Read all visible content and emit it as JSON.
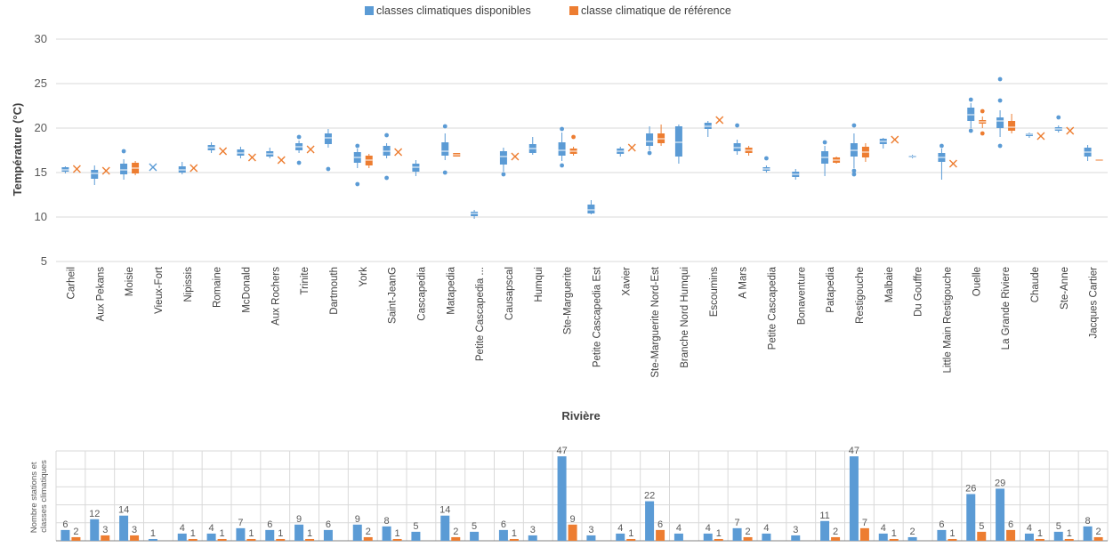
{
  "chart_data": [
    {
      "type": "boxplot",
      "legend": {
        "position": "top",
        "entries": [
          {
            "name": "classes climatiques disponibles",
            "color": "#5B9BD5"
          },
          {
            "name": "classe climatique de référence",
            "color": "#ED7D31"
          }
        ]
      },
      "xlabel": "Rivière",
      "ylabel": "Température (°C)",
      "ylim": [
        5,
        30
      ],
      "yticks": [
        5,
        10,
        15,
        20,
        25,
        30
      ],
      "grid": true,
      "categories": [
        "Carheil",
        "Aux Pekans",
        "Moisie",
        "Vieux-Fort",
        "Nipissis",
        "Romaine",
        "McDonald",
        "Aux Rochers",
        "Trinite",
        "Dartmouth",
        "York",
        "Saint-JeanG",
        "Cascapedia",
        "Matapedia",
        "Petite Cascapedia ...",
        "Causapscal",
        "Humqui",
        "Ste-Marguerite",
        "Petite Cascapedia Est",
        "Xavier",
        "Ste-Marguerite Nord-Est",
        "Branche Nord Humqui",
        "Escoumins",
        "A Mars",
        "Petite Cascapedia",
        "Bonaventure",
        "Patapedia",
        "Restigouche",
        "Malbaie",
        "Du Gouffre",
        "Little Main Restigouche",
        "Ouelle",
        "La Grande Riviere",
        "Chaude",
        "Ste-Anne",
        "Jacques Cartier"
      ],
      "series": [
        {
          "name": "classes climatiques disponibles",
          "boxes": [
            {
              "min": 14.9,
              "q1": 15.1,
              "median": 15.3,
              "q3": 15.6,
              "max": 15.7,
              "outliers": []
            },
            {
              "min": 13.6,
              "q1": 14.3,
              "median": 14.9,
              "q3": 15.3,
              "max": 15.8,
              "outliers": []
            },
            {
              "min": 14.2,
              "q1": 14.8,
              "median": 15.3,
              "q3": 16.0,
              "max": 16.5,
              "outliers": [
                17.4
              ]
            },
            {
              "min": 15.6,
              "q1": 15.6,
              "median": 15.6,
              "q3": 15.6,
              "max": 15.6,
              "outliers": []
            },
            {
              "min": 14.8,
              "q1": 15.0,
              "median": 15.3,
              "q3": 15.7,
              "max": 16.2,
              "outliers": []
            },
            {
              "min": 17.2,
              "q1": 17.5,
              "median": 17.8,
              "q3": 18.1,
              "max": 18.4,
              "outliers": []
            },
            {
              "min": 16.6,
              "q1": 16.9,
              "median": 17.2,
              "q3": 17.6,
              "max": 17.9,
              "outliers": []
            },
            {
              "min": 16.6,
              "q1": 16.8,
              "median": 17.1,
              "q3": 17.4,
              "max": 17.8,
              "outliers": []
            },
            {
              "min": 17.2,
              "q1": 17.5,
              "median": 17.9,
              "q3": 18.3,
              "max": 18.6,
              "outliers": [
                16.1,
                19.0
              ]
            },
            {
              "min": 17.8,
              "q1": 18.2,
              "median": 18.9,
              "q3": 19.4,
              "max": 19.9,
              "outliers": [
                15.4
              ]
            },
            {
              "min": 15.5,
              "q1": 16.1,
              "median": 16.7,
              "q3": 17.3,
              "max": 17.7,
              "outliers": [
                13.7,
                18.0
              ]
            },
            {
              "min": 16.6,
              "q1": 16.9,
              "median": 17.4,
              "q3": 18.0,
              "max": 18.3,
              "outliers": [
                14.4,
                19.2
              ]
            },
            {
              "min": 14.6,
              "q1": 15.1,
              "median": 15.6,
              "q3": 16.0,
              "max": 16.4,
              "outliers": []
            },
            {
              "min": 16.4,
              "q1": 16.9,
              "median": 17.4,
              "q3": 18.4,
              "max": 19.4,
              "outliers": [
                15.0,
                20.2
              ]
            },
            {
              "min": 9.8,
              "q1": 10.1,
              "median": 10.4,
              "q3": 10.6,
              "max": 10.8,
              "outliers": []
            },
            {
              "min": 15.1,
              "q1": 15.9,
              "median": 16.8,
              "q3": 17.4,
              "max": 17.8,
              "outliers": [
                14.8
              ]
            },
            {
              "min": 17.0,
              "q1": 17.2,
              "median": 17.7,
              "q3": 18.2,
              "max": 19.0,
              "outliers": []
            },
            {
              "min": 16.3,
              "q1": 16.9,
              "median": 17.5,
              "q3": 18.4,
              "max": 19.5,
              "outliers": [
                15.8,
                19.9
              ]
            },
            {
              "min": 10.3,
              "q1": 10.4,
              "median": 10.8,
              "q3": 11.4,
              "max": 11.9,
              "outliers": []
            },
            {
              "min": 16.8,
              "q1": 17.1,
              "median": 17.4,
              "q3": 17.7,
              "max": 17.9,
              "outliers": []
            },
            {
              "min": 17.5,
              "q1": 18.0,
              "median": 18.5,
              "q3": 19.4,
              "max": 20.2,
              "outliers": [
                17.2
              ]
            },
            {
              "min": 16.0,
              "q1": 16.8,
              "median": 18.4,
              "q3": 20.2,
              "max": 20.4,
              "outliers": []
            },
            {
              "min": 19.0,
              "q1": 19.9,
              "median": 20.2,
              "q3": 20.6,
              "max": 20.8,
              "outliers": []
            },
            {
              "min": 17.0,
              "q1": 17.4,
              "median": 17.8,
              "q3": 18.3,
              "max": 18.7,
              "outliers": [
                20.3
              ]
            },
            {
              "min": 15.0,
              "q1": 15.2,
              "median": 15.4,
              "q3": 15.6,
              "max": 15.8,
              "outliers": [
                16.6
              ]
            },
            {
              "min": 14.2,
              "q1": 14.5,
              "median": 14.8,
              "q3": 15.1,
              "max": 15.4,
              "outliers": []
            },
            {
              "min": 14.6,
              "q1": 16.0,
              "median": 16.7,
              "q3": 17.4,
              "max": 18.0,
              "outliers": [
                18.4
              ]
            },
            {
              "min": 15.5,
              "q1": 16.8,
              "median": 17.5,
              "q3": 18.3,
              "max": 19.4,
              "outliers": [
                14.8,
                15.2,
                20.3
              ]
            },
            {
              "min": 17.7,
              "q1": 18.2,
              "median": 18.5,
              "q3": 18.8,
              "max": 18.9,
              "outliers": []
            },
            {
              "min": 16.6,
              "q1": 16.7,
              "median": 16.8,
              "q3": 16.9,
              "max": 17.0,
              "outliers": []
            },
            {
              "min": 14.2,
              "q1": 16.2,
              "median": 16.7,
              "q3": 17.2,
              "max": 17.7,
              "outliers": [
                18.0
              ]
            },
            {
              "min": 20.0,
              "q1": 20.8,
              "median": 21.5,
              "q3": 22.3,
              "max": 22.8,
              "outliers": [
                19.7,
                23.2
              ]
            },
            {
              "min": 19.0,
              "q1": 20.0,
              "median": 20.8,
              "q3": 21.2,
              "max": 22.0,
              "outliers": [
                18.0,
                23.1,
                25.5
              ]
            },
            {
              "min": 18.9,
              "q1": 19.1,
              "median": 19.3,
              "q3": 19.4,
              "max": 19.5,
              "outliers": []
            },
            {
              "min": 19.5,
              "q1": 19.7,
              "median": 19.9,
              "q3": 20.1,
              "max": 20.3,
              "outliers": [
                21.2
              ]
            },
            {
              "min": 16.3,
              "q1": 16.8,
              "median": 17.3,
              "q3": 17.8,
              "max": 18.1,
              "outliers": []
            }
          ]
        },
        {
          "name": "classe climatique de référence",
          "boxes": [
            {
              "min": 15.4,
              "q1": 15.4,
              "median": 15.4,
              "q3": 15.4,
              "max": 15.4,
              "outliers": []
            },
            {
              "min": 15.2,
              "q1": 15.2,
              "median": 15.2,
              "q3": 15.2,
              "max": 15.2,
              "outliers": []
            },
            {
              "min": 14.7,
              "q1": 14.9,
              "median": 15.5,
              "q3": 16.1,
              "max": 16.3,
              "outliers": []
            },
            null,
            {
              "min": 15.5,
              "q1": 15.5,
              "median": 15.5,
              "q3": 15.5,
              "max": 15.5,
              "outliers": []
            },
            {
              "min": 17.4,
              "q1": 17.4,
              "median": 17.4,
              "q3": 17.4,
              "max": 17.4,
              "outliers": []
            },
            {
              "min": 16.7,
              "q1": 16.7,
              "median": 16.7,
              "q3": 16.7,
              "max": 16.7,
              "outliers": []
            },
            {
              "min": 16.4,
              "q1": 16.4,
              "median": 16.4,
              "q3": 16.4,
              "max": 16.4,
              "outliers": []
            },
            {
              "min": 17.6,
              "q1": 17.6,
              "median": 17.6,
              "q3": 17.6,
              "max": 17.6,
              "outliers": []
            },
            null,
            {
              "min": 15.5,
              "q1": 15.8,
              "median": 16.4,
              "q3": 16.9,
              "max": 17.1,
              "outliers": []
            },
            {
              "min": 17.3,
              "q1": 17.3,
              "median": 17.3,
              "q3": 17.3,
              "max": 17.3,
              "outliers": []
            },
            null,
            {
              "min": 16.8,
              "q1": 16.8,
              "median": 17.0,
              "q3": 17.2,
              "max": 17.2,
              "outliers": []
            },
            null,
            {
              "min": 16.8,
              "q1": 16.8,
              "median": 16.8,
              "q3": 16.8,
              "max": 16.8,
              "outliers": []
            },
            null,
            {
              "min": 16.9,
              "q1": 17.1,
              "median": 17.4,
              "q3": 17.7,
              "max": 17.9,
              "outliers": [
                19.0
              ]
            },
            null,
            {
              "min": 17.8,
              "q1": 17.8,
              "median": 17.8,
              "q3": 17.8,
              "max": 17.8,
              "outliers": []
            },
            {
              "min": 18.0,
              "q1": 18.3,
              "median": 18.8,
              "q3": 19.4,
              "max": 20.4,
              "outliers": []
            },
            null,
            {
              "min": 20.9,
              "q1": 20.9,
              "median": 20.9,
              "q3": 20.9,
              "max": 20.9,
              "outliers": []
            },
            {
              "min": 16.9,
              "q1": 17.2,
              "median": 17.5,
              "q3": 17.8,
              "max": 18.0,
              "outliers": []
            },
            null,
            null,
            {
              "min": 16.0,
              "q1": 16.1,
              "median": 16.4,
              "q3": 16.7,
              "max": 16.8,
              "outliers": []
            },
            {
              "min": 16.2,
              "q1": 16.7,
              "median": 17.3,
              "q3": 17.9,
              "max": 18.3,
              "outliers": []
            },
            {
              "min": 18.7,
              "q1": 18.7,
              "median": 18.7,
              "q3": 18.7,
              "max": 18.7,
              "outliers": []
            },
            null,
            {
              "min": 16.0,
              "q1": 16.0,
              "median": 16.0,
              "q3": 16.0,
              "max": 16.0,
              "outliers": []
            },
            {
              "min": 20.0,
              "q1": 20.5,
              "median": 20.7,
              "q3": 20.9,
              "max": 21.3,
              "outliers": [
                19.4,
                21.9
              ]
            },
            {
              "min": 19.4,
              "q1": 19.7,
              "median": 20.1,
              "q3": 20.8,
              "max": 21.6,
              "outliers": []
            },
            {
              "min": 19.1,
              "q1": 19.1,
              "median": 19.1,
              "q3": 19.1,
              "max": 19.1,
              "outliers": []
            },
            {
              "min": 19.7,
              "q1": 19.7,
              "median": 19.7,
              "q3": 19.7,
              "max": 19.7,
              "outliers": []
            },
            {
              "min": 16.3,
              "q1": 16.3,
              "median": 16.4,
              "q3": 16.5,
              "max": 16.5,
              "outliers": []
            }
          ]
        }
      ]
    },
    {
      "type": "bar",
      "ylabel": "Nombre stations et classes climatiques",
      "ylim": [
        0,
        50
      ],
      "grid": true,
      "series": [
        {
          "name": "classes climatiques disponibles",
          "color": "#5B9BD5",
          "values": [
            6,
            12,
            14,
            1,
            4,
            4,
            7,
            6,
            9,
            6,
            9,
            8,
            5,
            14,
            5,
            6,
            3,
            47,
            3,
            4,
            22,
            4,
            4,
            7,
            4,
            3,
            11,
            47,
            4,
            2,
            6,
            26,
            29,
            4,
            5,
            8
          ]
        },
        {
          "name": "classe climatique de référence",
          "color": "#ED7D31",
          "values": [
            2,
            3,
            3,
            null,
            1,
            1,
            1,
            1,
            1,
            null,
            2,
            1,
            null,
            2,
            null,
            1,
            null,
            9,
            null,
            1,
            6,
            null,
            1,
            2,
            null,
            null,
            2,
            7,
            1,
            null,
            1,
            5,
            6,
            1,
            1,
            2
          ]
        }
      ]
    }
  ]
}
